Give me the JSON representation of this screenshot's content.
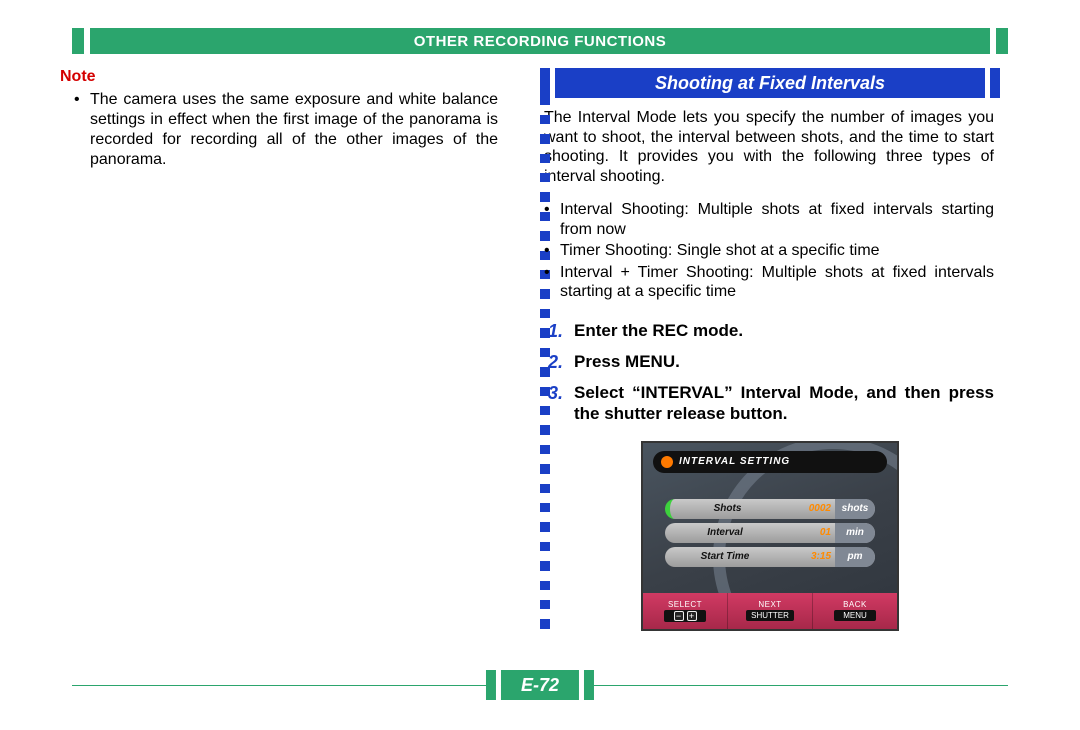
{
  "colors": {
    "green": "#2ba56d",
    "blue": "#1a3fc6",
    "red": "#d40000",
    "footer_pink": "#d13a63",
    "lcd_orange": "#ff8a00"
  },
  "header": {
    "title": "OTHER RECORDING FUNCTIONS"
  },
  "left": {
    "note_label": "Note",
    "note_text": "The camera uses the same exposure and white balance settings in effect when the first image of the panorama is recorded for recording all of the other images of the panorama."
  },
  "right": {
    "section_title": "Shooting at Fixed Intervals",
    "intro": "The Interval Mode lets you specify the number of images you want to shoot, the interval between shots, and the time to start shooting. It provides you with the following three types of interval shooting.",
    "bullets": [
      "Interval Shooting: Multiple shots at fixed intervals starting from now",
      "Timer Shooting: Single shot at a specific time",
      "Interval + Timer Shooting: Multiple shots at fixed intervals starting at a specific time"
    ],
    "steps": [
      {
        "n": "1.",
        "t": "Enter the REC mode."
      },
      {
        "n": "2.",
        "t": "Press MENU."
      },
      {
        "n": "3.",
        "t": "Select “INTERVAL” Interval Mode, and then press the shutter release button."
      }
    ]
  },
  "lcd": {
    "title": "INTERVAL SETTING",
    "rows": [
      {
        "label": "Shots",
        "value": "0002",
        "unit": "shots",
        "selected": true
      },
      {
        "label": "Interval",
        "value": "01",
        "unit": "min",
        "selected": false
      },
      {
        "label": "Start Time",
        "value": "3:15",
        "unit": "pm",
        "selected": false
      }
    ],
    "footer": [
      {
        "top": "SELECT",
        "btn_type": "plusminus"
      },
      {
        "top": "NEXT",
        "btn": "SHUTTER"
      },
      {
        "top": "BACK",
        "btn": "MENU"
      }
    ]
  },
  "page_number": "E-72",
  "divider_squares": 29
}
